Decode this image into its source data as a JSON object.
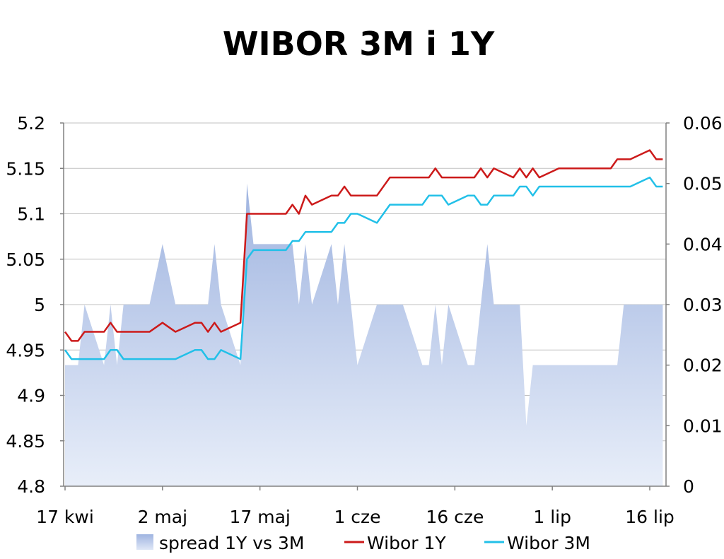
{
  "chart_data": {
    "type": "line",
    "title": "WIBOR 3M i 1Y",
    "xlabel": "",
    "ylabel": "",
    "x_dates": [
      "2007-04-17",
      "2007-04-18",
      "2007-04-19",
      "2007-04-20",
      "2007-04-23",
      "2007-04-24",
      "2007-04-25",
      "2007-04-26",
      "2007-04-27",
      "2007-04-30",
      "2007-05-02",
      "2007-05-04",
      "2007-05-07",
      "2007-05-08",
      "2007-05-09",
      "2007-05-10",
      "2007-05-11",
      "2007-05-14",
      "2007-05-15",
      "2007-05-16",
      "2007-05-17",
      "2007-05-18",
      "2007-05-21",
      "2007-05-22",
      "2007-05-23",
      "2007-05-24",
      "2007-05-25",
      "2007-05-28",
      "2007-05-29",
      "2007-05-30",
      "2007-05-31",
      "2007-06-01",
      "2007-06-04",
      "2007-06-05",
      "2007-06-06",
      "2007-06-08",
      "2007-06-11",
      "2007-06-12",
      "2007-06-13",
      "2007-06-14",
      "2007-06-15",
      "2007-06-18",
      "2007-06-19",
      "2007-06-20",
      "2007-06-21",
      "2007-06-22",
      "2007-06-25",
      "2007-06-26",
      "2007-06-27",
      "2007-06-28",
      "2007-06-29",
      "2007-07-02",
      "2007-07-03",
      "2007-07-04",
      "2007-07-05",
      "2007-07-06",
      "2007-07-09",
      "2007-07-10",
      "2007-07-11",
      "2007-07-12",
      "2007-07-13",
      "2007-07-16",
      "2007-07-17",
      "2007-07-18"
    ],
    "series": [
      {
        "name": "spread 1Y vs 3M",
        "type": "area",
        "axis": "right",
        "color": "#a9bde5",
        "values": [
          0.02,
          0.02,
          0.02,
          0.03,
          0.02,
          0.03,
          0.02,
          0.03,
          0.03,
          0.03,
          0.04,
          0.03,
          0.03,
          0.03,
          0.03,
          0.04,
          0.03,
          0.02,
          0.05,
          0.04,
          0.04,
          0.04,
          0.04,
          0.04,
          0.03,
          0.04,
          0.03,
          0.04,
          0.03,
          0.04,
          0.03,
          0.02,
          0.03,
          0.03,
          0.03,
          0.03,
          0.02,
          0.02,
          0.03,
          0.02,
          0.03,
          0.02,
          0.02,
          0.03,
          0.04,
          0.03,
          0.03,
          0.03,
          0.01,
          0.02,
          0.02,
          0.02,
          0.02,
          0.02,
          0.02,
          0.02,
          0.02,
          0.02,
          0.02,
          0.03,
          0.03,
          0.03,
          0.03,
          0.03
        ]
      },
      {
        "name": "Wibor 1Y",
        "type": "line",
        "axis": "left",
        "color": "#cc1a1a",
        "values": [
          4.97,
          4.96,
          4.96,
          4.97,
          4.97,
          4.98,
          4.97,
          4.97,
          4.97,
          4.97,
          4.98,
          4.97,
          4.98,
          4.98,
          4.97,
          4.98,
          4.97,
          4.98,
          5.1,
          5.1,
          5.1,
          5.1,
          5.1,
          5.11,
          5.1,
          5.12,
          5.11,
          5.12,
          5.12,
          5.13,
          5.12,
          5.12,
          5.12,
          5.13,
          5.14,
          5.14,
          5.14,
          5.14,
          5.15,
          5.14,
          5.14,
          5.14,
          5.14,
          5.15,
          5.14,
          5.15,
          5.14,
          5.15,
          5.14,
          5.15,
          5.14,
          5.15,
          5.15,
          5.15,
          5.15,
          5.15,
          5.15,
          5.15,
          5.16,
          5.16,
          5.16,
          5.17,
          5.16,
          5.16
        ]
      },
      {
        "name": "Wibor 3M",
        "type": "line",
        "axis": "left",
        "color": "#22c0e8",
        "values": [
          4.95,
          4.94,
          4.94,
          4.94,
          4.94,
          4.95,
          4.95,
          4.94,
          4.94,
          4.94,
          4.94,
          4.94,
          4.95,
          4.95,
          4.94,
          4.94,
          4.95,
          4.94,
          5.05,
          5.06,
          5.06,
          5.06,
          5.06,
          5.07,
          5.07,
          5.08,
          5.08,
          5.08,
          5.09,
          5.09,
          5.1,
          5.1,
          5.09,
          5.1,
          5.11,
          5.11,
          5.11,
          5.12,
          5.12,
          5.12,
          5.11,
          5.12,
          5.12,
          5.11,
          5.11,
          5.12,
          5.12,
          5.13,
          5.13,
          5.12,
          5.13,
          5.13,
          5.13,
          5.13,
          5.13,
          5.13,
          5.13,
          5.13,
          5.13,
          5.13,
          5.13,
          5.14,
          5.13,
          5.13
        ]
      }
    ],
    "y_left": {
      "min": 4.8,
      "max": 5.2,
      "ticks": [
        "4.8",
        "4.85",
        "4.9",
        "4.95",
        "5",
        "5.05",
        "5.1",
        "5.15",
        "5.2"
      ]
    },
    "y_right": {
      "min": 0,
      "max": 0.06,
      "ticks": [
        "0",
        "0.01",
        "0.02",
        "0.03",
        "0.04",
        "0.05",
        "0.06"
      ]
    },
    "x_ticks": [
      {
        "date": "2007-04-17",
        "label": "17 kwi"
      },
      {
        "date": "2007-05-02",
        "label": "2 maj"
      },
      {
        "date": "2007-05-17",
        "label": "17 maj"
      },
      {
        "date": "2007-06-01",
        "label": "1 cze"
      },
      {
        "date": "2007-06-16",
        "label": "16 cze"
      },
      {
        "date": "2007-07-01",
        "label": "1 lip"
      },
      {
        "date": "2007-07-16",
        "label": "16 lip"
      }
    ],
    "grid": true,
    "legend_position": "bottom"
  }
}
